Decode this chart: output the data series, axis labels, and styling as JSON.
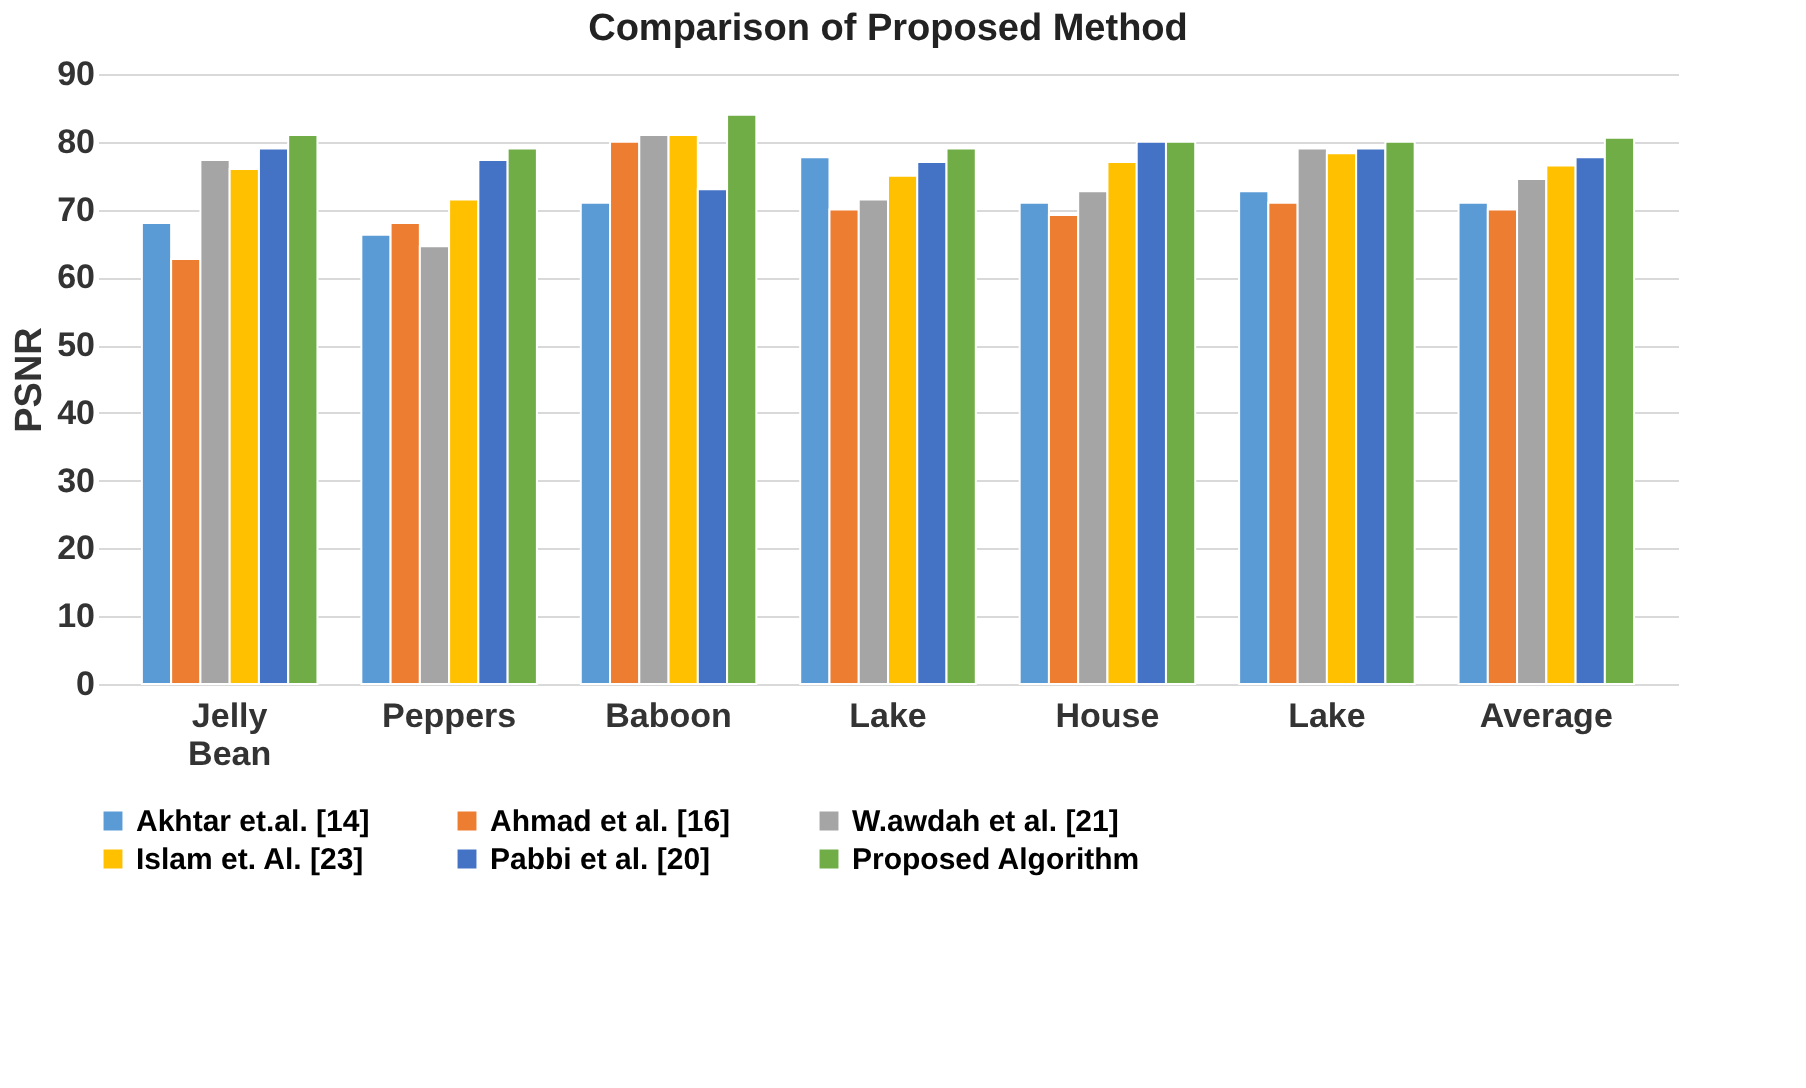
{
  "chart_data": {
    "type": "bar",
    "title": "Comparison of Proposed Method",
    "ylabel": "PSNR",
    "categories": [
      "Jelly Bean",
      "Peppers",
      "Baboon",
      "Lake",
      "House",
      "Lake",
      "Average"
    ],
    "series": [
      {
        "name": "Akhtar et.al. [14]",
        "color": "#5b9bd5",
        "values": [
          68,
          66.3,
          71,
          77.7,
          71,
          72.7,
          71
        ]
      },
      {
        "name": "Ahmad et al. [16]",
        "color": "#ed7d31",
        "values": [
          62.7,
          68,
          80,
          70,
          69.2,
          71,
          70
        ]
      },
      {
        "name": "W.awdah et al. [21]",
        "color": "#a5a5a5",
        "values": [
          77.3,
          64.6,
          81,
          71.5,
          72.7,
          79,
          74.5
        ]
      },
      {
        "name": "Islam et. Al. [23]",
        "color": "#ffc000",
        "values": [
          76,
          71.5,
          81,
          75,
          77,
          78.3,
          76.5
        ]
      },
      {
        "name": "Pabbi et al. [20]",
        "color": "#4472c4",
        "values": [
          79,
          77.3,
          73,
          77,
          80,
          79,
          77.7
        ]
      },
      {
        "name": "Proposed Algorithm",
        "color": "#70ad47",
        "values": [
          81,
          79,
          84,
          79,
          80,
          80,
          80.6
        ]
      }
    ],
    "ylim": [
      0,
      90
    ],
    "yticks": [
      0,
      10,
      20,
      30,
      40,
      50,
      60,
      70,
      80,
      90
    ],
    "grid": "y",
    "legend": "bottom"
  }
}
